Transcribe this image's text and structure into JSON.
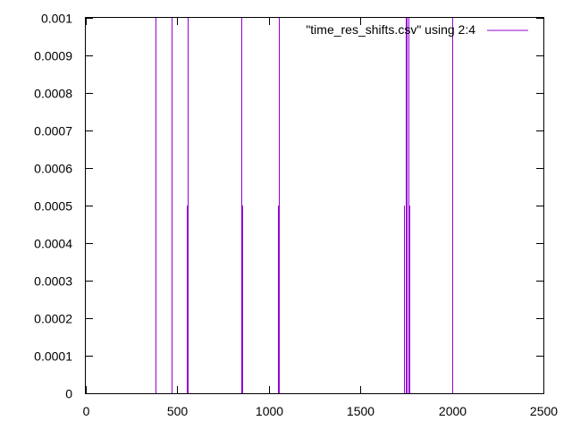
{
  "chart_data": {
    "type": "line",
    "title": "",
    "xlabel": "",
    "ylabel": "",
    "xlim": [
      0,
      2500
    ],
    "ylim": [
      0,
      0.001
    ],
    "grid": false,
    "legend_position": "top-right",
    "x_ticks": [
      "0",
      "500",
      "1000",
      "1500",
      "2000",
      "2500"
    ],
    "y_ticks": [
      "0",
      "0.0001",
      "0.0002",
      "0.0003",
      "0.0004",
      "0.0005",
      "0.0006",
      "0.0007",
      "0.0008",
      "0.0009",
      "0.001"
    ],
    "series": [
      {
        "name": "\"time_res_shifts.csv\" using 2:4",
        "color": "#9400d3",
        "spikes": [
          {
            "x": 380,
            "y": 0.001
          },
          {
            "x": 382,
            "y": 0.0005
          },
          {
            "x": 470,
            "y": 0.001
          },
          {
            "x": 552,
            "y": 0.0005
          },
          {
            "x": 555,
            "y": 0.001
          },
          {
            "x": 852,
            "y": 0.001
          },
          {
            "x": 855,
            "y": 0.0005
          },
          {
            "x": 1050,
            "y": 0.0005
          },
          {
            "x": 1053,
            "y": 0.001
          },
          {
            "x": 1740,
            "y": 0.0005
          },
          {
            "x": 1748,
            "y": 0.001
          },
          {
            "x": 1752,
            "y": 0.001
          },
          {
            "x": 1755,
            "y": 0.0005
          },
          {
            "x": 1765,
            "y": 0.001
          },
          {
            "x": 1768,
            "y": 0.0005
          },
          {
            "x": 2000,
            "y": 0.001
          },
          {
            "x": 2003,
            "y": 0.0005
          }
        ]
      }
    ]
  }
}
